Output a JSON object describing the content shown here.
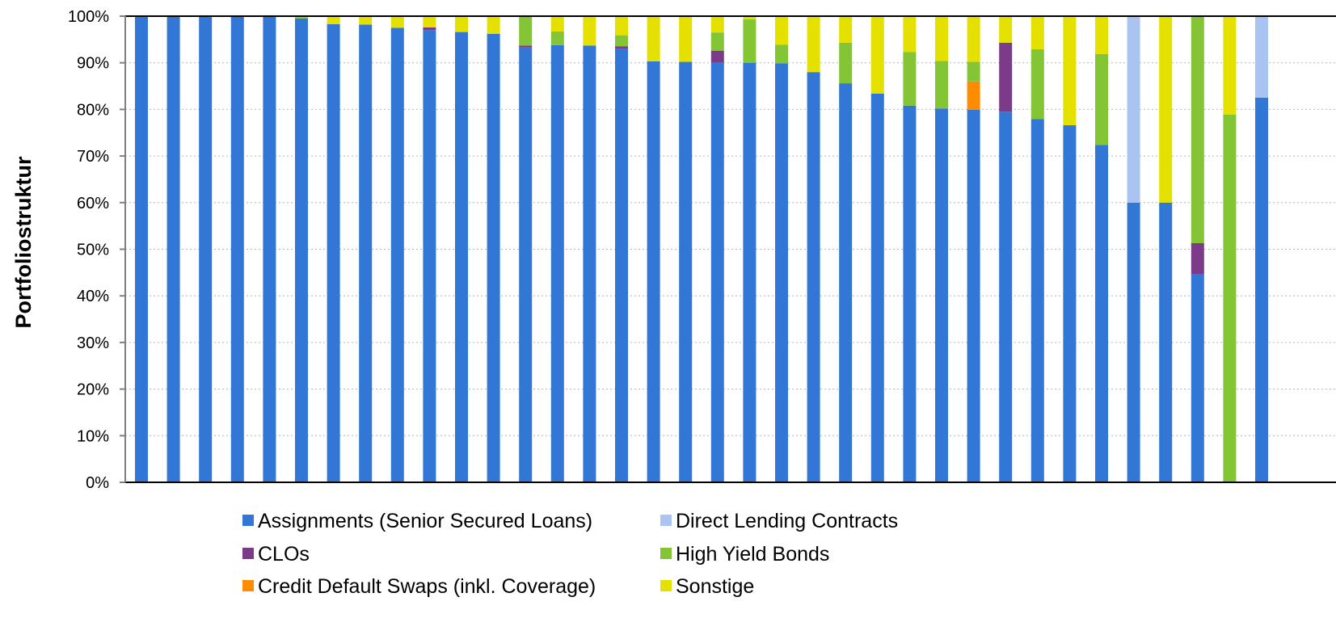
{
  "chart_data": {
    "type": "bar",
    "stacked": true,
    "title": "",
    "xlabel": "",
    "ylabel": "Portfoliostruktur",
    "ylim": [
      0,
      100
    ],
    "yticks": [
      "0%",
      "10%",
      "20%",
      "30%",
      "40%",
      "50%",
      "60%",
      "70%",
      "80%",
      "90%",
      "100%"
    ],
    "grid": "horizontal-dotted",
    "legend_position": "bottom",
    "categories_count": 36,
    "series": [
      {
        "name": "Assignments (Senior Secured Loans)",
        "color": "#3377d6",
        "values": [
          100,
          100,
          100,
          100,
          100,
          99.5,
          98.3,
          98.2,
          97.5,
          97,
          96.6,
          96.2,
          93.3,
          93.8,
          93.7,
          93,
          90.3,
          90.2,
          90,
          90,
          89.9,
          88,
          85.6,
          83.4,
          80.8,
          80.2,
          79.9,
          79.5,
          77.9,
          76.6,
          72.4,
          60,
          60,
          44.6,
          0,
          82.5
        ]
      },
      {
        "name": "CLOs",
        "color": "#7b3b89",
        "values": [
          0,
          0,
          0,
          0,
          0,
          0,
          0,
          0,
          0,
          0.6,
          0,
          0,
          0.4,
          0,
          0,
          0.5,
          0,
          0,
          2.6,
          0,
          0,
          0,
          0,
          0,
          0,
          0,
          0,
          14.8,
          0,
          0,
          0,
          0,
          0,
          6.7,
          0,
          0
        ]
      },
      {
        "name": "Credit Default Swaps (inkl. Coverage)",
        "color": "#ff8c00",
        "values": [
          0,
          0,
          0,
          0,
          0,
          0,
          0,
          0,
          0,
          0,
          0,
          0,
          0,
          0,
          0,
          0,
          0,
          0,
          0,
          0,
          0,
          0,
          0,
          0,
          0,
          0,
          6.1,
          0,
          0,
          0,
          0,
          0,
          0,
          0,
          0,
          0
        ]
      },
      {
        "name": "Direct Lending Contracts",
        "color": "#a9c4f0",
        "values": [
          0,
          0,
          0,
          0,
          0,
          0,
          0,
          0,
          0,
          0,
          0,
          0,
          0,
          0,
          0,
          0,
          0,
          0,
          0,
          0,
          0,
          0,
          0,
          0,
          0,
          0,
          0,
          0,
          0,
          0,
          0,
          40,
          0,
          0,
          0,
          17.5
        ]
      },
      {
        "name": " High Yield Bonds",
        "color": "#84c535",
        "values": [
          0,
          0,
          0,
          0,
          0,
          0.3,
          0,
          0,
          0,
          0,
          0,
          0,
          6.3,
          2.9,
          0,
          2.4,
          0,
          0,
          3.9,
          9.3,
          4,
          0,
          8.7,
          0,
          11.5,
          10.2,
          4.2,
          0,
          15,
          0,
          19.5,
          0,
          0,
          48.7,
          78.9,
          0
        ]
      },
      {
        "name": "Sonstige",
        "color": "#e4e100",
        "values": [
          0,
          0,
          0,
          0,
          0,
          0.2,
          1.7,
          1.8,
          2.5,
          2.4,
          3.4,
          3.8,
          0,
          3.3,
          6.3,
          4.1,
          9.7,
          9.8,
          3.5,
          0.7,
          6.1,
          12,
          5.7,
          16.6,
          7.7,
          9.6,
          9.8,
          5.7,
          7.1,
          23.4,
          8.1,
          0,
          40,
          0,
          21.1,
          0
        ]
      }
    ]
  }
}
